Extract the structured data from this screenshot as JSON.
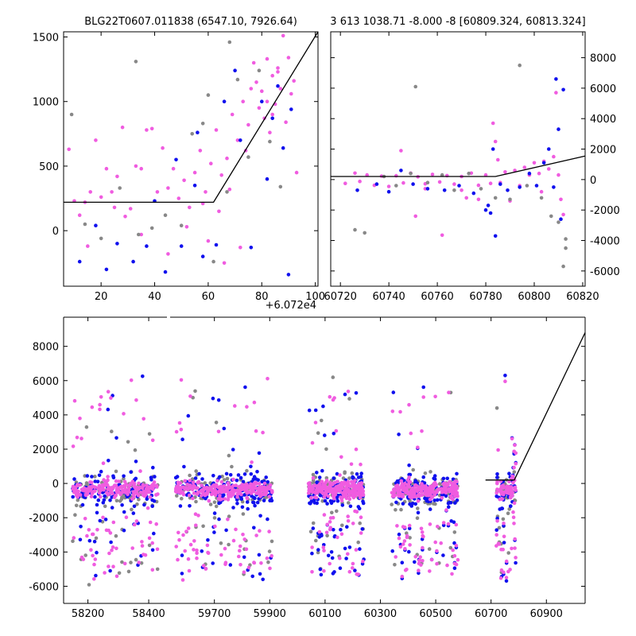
{
  "chart_data": [
    {
      "type": "scatter",
      "title": "BLG22T0607.011838 (6547.10, 7926.64)",
      "xlabel": "",
      "ylabel": "",
      "x_offset_label": "+6.072e4",
      "xlim": [
        6,
        101
      ],
      "ylim": [
        -430,
        1540
      ],
      "xticks": [
        20,
        40,
        60,
        80,
        100
      ],
      "yticks": [
        0,
        500,
        1000,
        1500
      ],
      "tick_side_y": "left",
      "series": [
        {
          "color": "#f05ce0",
          "points": [
            [
              8,
              630
            ],
            [
              10,
              230
            ],
            [
              12,
              120
            ],
            [
              14,
              220
            ],
            [
              16,
              300
            ],
            [
              18,
              700
            ],
            [
              20,
              260
            ],
            [
              22,
              480
            ],
            [
              24,
              300
            ],
            [
              26,
              420
            ],
            [
              28,
              800
            ],
            [
              29,
              110
            ],
            [
              31,
              170
            ],
            [
              33,
              500
            ],
            [
              35,
              480
            ],
            [
              37,
              780
            ],
            [
              39,
              790
            ],
            [
              41,
              300
            ],
            [
              43,
              640
            ],
            [
              45,
              330
            ],
            [
              47,
              480
            ],
            [
              49,
              250
            ],
            [
              51,
              390
            ],
            [
              53,
              180
            ],
            [
              55,
              450
            ],
            [
              57,
              620
            ],
            [
              59,
              300
            ],
            [
              61,
              520
            ],
            [
              63,
              780
            ],
            [
              65,
              430
            ],
            [
              67,
              560
            ],
            [
              69,
              900
            ],
            [
              71,
              700
            ],
            [
              73,
              1000
            ],
            [
              75,
              820
            ],
            [
              77,
              1300
            ],
            [
              78,
              1150
            ],
            [
              79,
              950
            ],
            [
              80,
              1080
            ],
            [
              81,
              870
            ],
            [
              82,
              1330
            ],
            [
              83,
              760
            ],
            [
              84,
              1200
            ],
            [
              85,
              980
            ],
            [
              86,
              1260
            ],
            [
              87,
              1100
            ],
            [
              88,
              1510
            ],
            [
              89,
              840
            ],
            [
              90,
              1340
            ],
            [
              91,
              1060
            ],
            [
              92,
              1160
            ],
            [
              93,
              450
            ],
            [
              60,
              -80
            ],
            [
              66,
              -250
            ],
            [
              72,
              -130
            ],
            [
              45,
              -180
            ],
            [
              35,
              -30
            ],
            [
              25,
              180
            ],
            [
              15,
              -120
            ],
            [
              52,
              30
            ],
            [
              58,
              210
            ],
            [
              64,
              150
            ],
            [
              68,
              320
            ],
            [
              74,
              620
            ],
            [
              76,
              1100
            ],
            [
              82,
              1000
            ],
            [
              84,
              900
            ],
            [
              86,
              1230
            ]
          ]
        },
        {
          "color": "#1010ee",
          "points": [
            [
              12,
              -240
            ],
            [
              18,
              40
            ],
            [
              22,
              -300
            ],
            [
              26,
              -100
            ],
            [
              32,
              -240
            ],
            [
              37,
              -120
            ],
            [
              40,
              230
            ],
            [
              44,
              -320
            ],
            [
              50,
              -120
            ],
            [
              56,
              760
            ],
            [
              58,
              -200
            ],
            [
              63,
              -110
            ],
            [
              66,
              1000
            ],
            [
              70,
              1240
            ],
            [
              72,
              700
            ],
            [
              76,
              -130
            ],
            [
              80,
              1000
            ],
            [
              82,
              400
            ],
            [
              84,
              870
            ],
            [
              86,
              1120
            ],
            [
              88,
              640
            ],
            [
              90,
              -340
            ],
            [
              91,
              940
            ],
            [
              55,
              350
            ],
            [
              48,
              550
            ]
          ]
        },
        {
          "color": "#888888",
          "points": [
            [
              9,
              900
            ],
            [
              14,
              50
            ],
            [
              20,
              -60
            ],
            [
              27,
              330
            ],
            [
              34,
              -30
            ],
            [
              39,
              20
            ],
            [
              44,
              120
            ],
            [
              50,
              40
            ],
            [
              54,
              750
            ],
            [
              58,
              830
            ],
            [
              62,
              -240
            ],
            [
              67,
              300
            ],
            [
              71,
              1170
            ],
            [
              75,
              570
            ],
            [
              79,
              1240
            ],
            [
              83,
              690
            ],
            [
              87,
              340
            ],
            [
              33,
              1310
            ],
            [
              60,
              1050
            ],
            [
              68,
              1460
            ]
          ]
        }
      ],
      "fit_line": [
        [
          6,
          220
        ],
        [
          62,
          220
        ],
        [
          101,
          1540
        ]
      ]
    },
    {
      "type": "scatter",
      "title": "3 613 1038.71 -8.000 -8 [60809.324, 60813.324]",
      "xlabel": "",
      "ylabel": "",
      "xlim": [
        60716,
        60821
      ],
      "ylim": [
        -7000,
        9700
      ],
      "xticks": [
        60720,
        60740,
        60760,
        60780,
        60800,
        60820
      ],
      "yticks": [
        -6000,
        -4000,
        -2000,
        0,
        2000,
        4000,
        6000,
        8000
      ],
      "tick_side_y": "right",
      "series": [
        {
          "color": "#f05ce0",
          "points": [
            [
              60722,
              -250
            ],
            [
              60726,
              420
            ],
            [
              60728,
              -120
            ],
            [
              60731,
              300
            ],
            [
              60734,
              -380
            ],
            [
              60737,
              230
            ],
            [
              60740,
              -450
            ],
            [
              60743,
              250
            ],
            [
              60746,
              -220
            ],
            [
              60749,
              420
            ],
            [
              60751,
              -2400
            ],
            [
              60752,
              180
            ],
            [
              60755,
              -280
            ],
            [
              60758,
              340
            ],
            [
              60761,
              -160
            ],
            [
              60762,
              -3650
            ],
            [
              60764,
              260
            ],
            [
              60767,
              -300
            ],
            [
              60770,
              200
            ],
            [
              60772,
              -1200
            ],
            [
              60774,
              420
            ],
            [
              60777,
              -380
            ],
            [
              60780,
              300
            ],
            [
              60782,
              -250
            ],
            [
              60783,
              3700
            ],
            [
              60784,
              2500
            ],
            [
              60785,
              1300
            ],
            [
              60786,
              -200
            ],
            [
              60788,
              500
            ],
            [
              60790,
              -1400
            ],
            [
              60792,
              600
            ],
            [
              60794,
              -400
            ],
            [
              60796,
              800
            ],
            [
              60798,
              300
            ],
            [
              60800,
              1100
            ],
            [
              60802,
              400
            ],
            [
              60803,
              -800
            ],
            [
              60804,
              1200
            ],
            [
              60806,
              700
            ],
            [
              60808,
              1500
            ],
            [
              60809,
              5700
            ],
            [
              60810,
              300
            ],
            [
              60811,
              -1300
            ],
            [
              60812,
              -2300
            ],
            [
              60745,
              1900
            ],
            [
              60755,
              -600
            ],
            [
              60770,
              -700
            ],
            [
              60777,
              -1300
            ]
          ]
        },
        {
          "color": "#1010ee",
          "points": [
            [
              60727,
              -700
            ],
            [
              60735,
              -300
            ],
            [
              60740,
              -800
            ],
            [
              60745,
              600
            ],
            [
              60750,
              -300
            ],
            [
              60756,
              -600
            ],
            [
              60763,
              -700
            ],
            [
              60769,
              -400
            ],
            [
              60775,
              -900
            ],
            [
              60780,
              -2000
            ],
            [
              60782,
              -2200
            ],
            [
              60783,
              2000
            ],
            [
              60784,
              -3700
            ],
            [
              60786,
              -300
            ],
            [
              60789,
              -700
            ],
            [
              60794,
              -500
            ],
            [
              60798,
              400
            ],
            [
              60801,
              -400
            ],
            [
              60804,
              1100
            ],
            [
              60806,
              2000
            ],
            [
              60808,
              -500
            ],
            [
              60809,
              6600
            ],
            [
              60810,
              3300
            ],
            [
              60811,
              -2600
            ],
            [
              60812,
              5900
            ],
            [
              60781,
              -1700
            ]
          ]
        },
        {
          "color": "#888888",
          "points": [
            [
              60726,
              -3300
            ],
            [
              60730,
              -3500
            ],
            [
              60738,
              200
            ],
            [
              60743,
              -400
            ],
            [
              60749,
              400
            ],
            [
              60751,
              6100
            ],
            [
              60756,
              -200
            ],
            [
              60762,
              300
            ],
            [
              60767,
              -700
            ],
            [
              60773,
              400
            ],
            [
              60778,
              -600
            ],
            [
              60784,
              -1200
            ],
            [
              60790,
              -1300
            ],
            [
              60794,
              7500
            ],
            [
              60797,
              -400
            ],
            [
              60803,
              -1200
            ],
            [
              60807,
              -2400
            ],
            [
              60810,
              -2800
            ],
            [
              60813,
              -3900
            ],
            [
              60813,
              -4500
            ],
            [
              60812,
              -5700
            ]
          ]
        }
      ],
      "fit_line": [
        [
          60716,
          200
        ],
        [
          60784,
          200
        ],
        [
          60821,
          1550
        ]
      ]
    },
    {
      "type": "scatter",
      "title": "",
      "xlabel": "",
      "ylabel": "",
      "xlim_left": [
        58120,
        58460
      ],
      "xlim_right": [
        59540,
        61040
      ],
      "ylim": [
        -7000,
        9700
      ],
      "xticks_left": [
        58200,
        58400
      ],
      "xticks_right": [
        59700,
        59900,
        60100,
        60300,
        60500,
        60700,
        60900
      ],
      "yticks": [
        -6000,
        -4000,
        -2000,
        0,
        2000,
        4000,
        6000,
        8000
      ],
      "broken_axis": true,
      "fit_line": [
        [
          60680,
          200
        ],
        [
          60784,
          200
        ],
        [
          61040,
          8800
        ]
      ]
    }
  ]
}
